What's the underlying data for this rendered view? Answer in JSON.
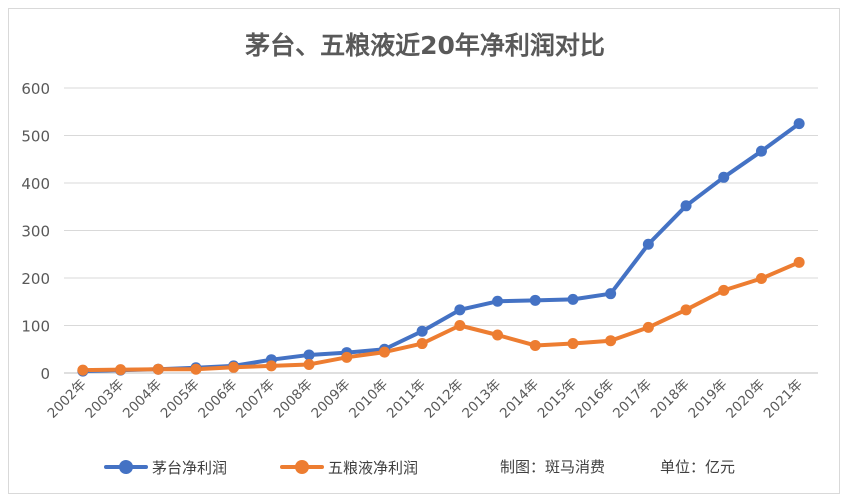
{
  "chart_data": {
    "type": "line",
    "title": "茅台、五粮液近20年净利润对比",
    "categories": [
      "2002年",
      "2003年",
      "2004年",
      "2005年",
      "2006年",
      "2007年",
      "2008年",
      "2009年",
      "2010年",
      "2011年",
      "2012年",
      "2013年",
      "2014年",
      "2015年",
      "2016年",
      "2017年",
      "2018年",
      "2019年",
      "2020年",
      "2021年"
    ],
    "series": [
      {
        "name": "茅台净利润",
        "color": "#4472c4",
        "values": [
          4,
          6,
          8,
          11,
          15,
          28,
          38,
          43,
          50,
          88,
          133,
          151,
          153,
          155,
          167,
          271,
          352,
          412,
          467,
          525
        ]
      },
      {
        "name": "五粮液净利润",
        "color": "#ed7d31",
        "values": [
          6,
          7,
          8,
          8,
          12,
          15,
          18,
          33,
          44,
          62,
          100,
          80,
          58,
          62,
          68,
          96,
          133,
          174,
          199,
          233
        ]
      }
    ],
    "ylim": [
      0,
      600
    ],
    "yticks": [
      0,
      100,
      200,
      300,
      400,
      500,
      600
    ],
    "grid": true,
    "legend_position": "bottom"
  },
  "footer": {
    "source_note": "制图：斑马消费",
    "unit_note": "单位：亿元"
  },
  "colors": {
    "gridline": "#d9d9d9",
    "text": "#595959",
    "title": "#595959"
  }
}
